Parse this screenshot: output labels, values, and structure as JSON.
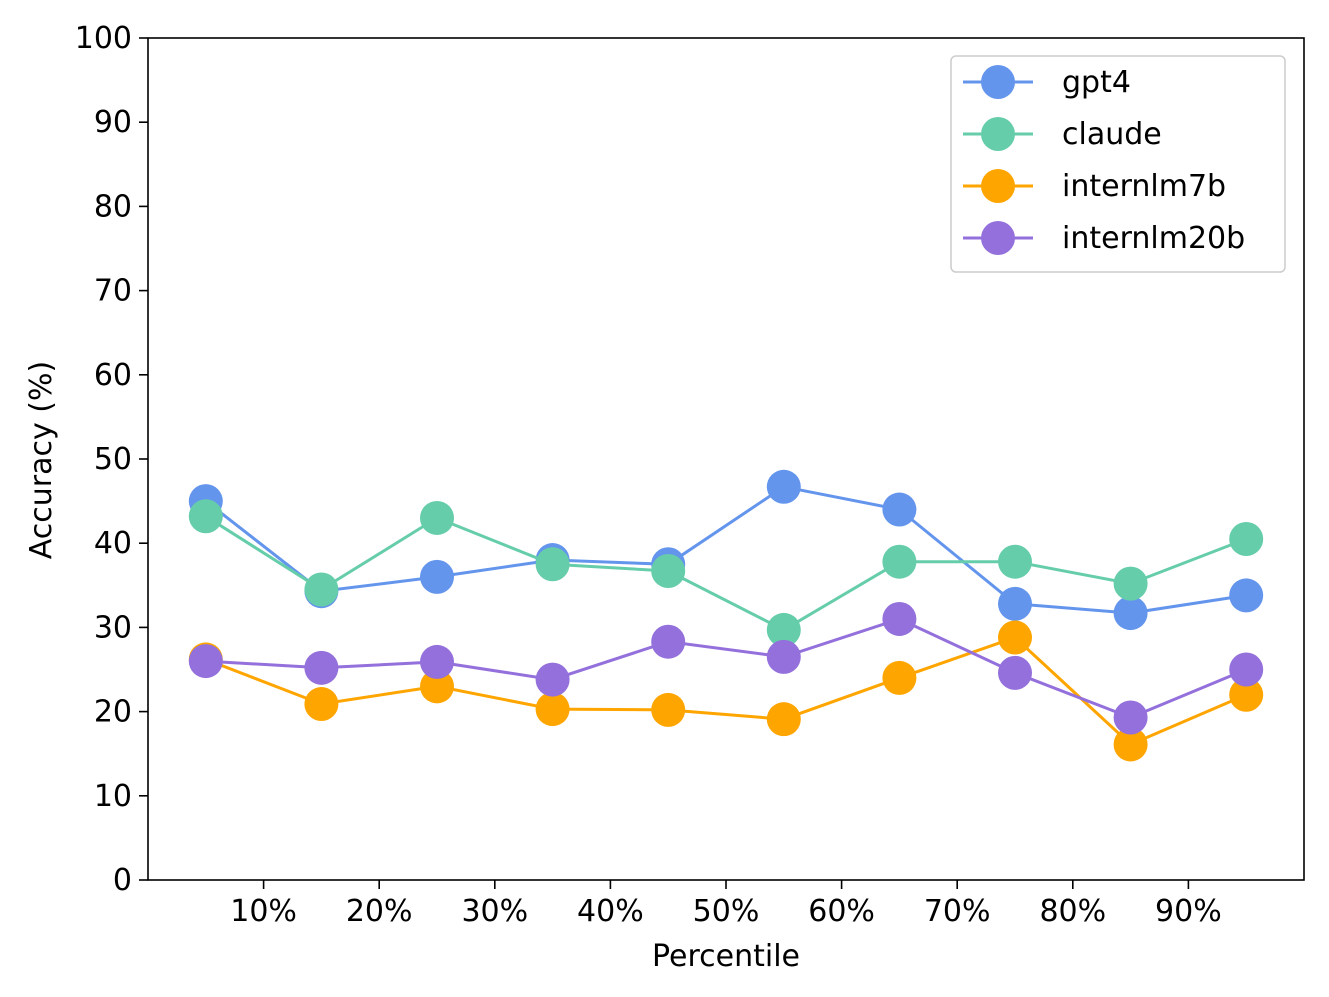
{
  "chart_data": {
    "type": "line",
    "title": "",
    "xlabel": "Percentile",
    "ylabel": "Accuracy (%)",
    "ylim": [
      0,
      100
    ],
    "xlim": [
      0,
      100
    ],
    "x": [
      5,
      15,
      25,
      35,
      45,
      55,
      65,
      75,
      85,
      95
    ],
    "xticks": [
      10,
      20,
      30,
      40,
      50,
      60,
      70,
      80,
      90
    ],
    "xtick_labels": [
      "10%",
      "20%",
      "30%",
      "40%",
      "50%",
      "60%",
      "70%",
      "80%",
      "90%"
    ],
    "yticks": [
      0,
      10,
      20,
      30,
      40,
      50,
      60,
      70,
      80,
      90,
      100
    ],
    "ytick_labels": [
      "0",
      "10",
      "20",
      "30",
      "40",
      "50",
      "60",
      "70",
      "80",
      "90",
      "100"
    ],
    "grid": false,
    "legend_position": "top-right",
    "series": [
      {
        "name": "gpt4",
        "color": "#6495ED",
        "values": [
          45.0,
          34.3,
          36.0,
          38.0,
          37.5,
          46.7,
          44.0,
          32.8,
          31.7,
          33.8
        ]
      },
      {
        "name": "claude",
        "color": "#66CDAA",
        "values": [
          43.2,
          34.5,
          43.0,
          37.5,
          36.7,
          29.7,
          37.8,
          37.8,
          35.2,
          40.5
        ]
      },
      {
        "name": "internlm7b",
        "color": "#FFA500",
        "values": [
          26.2,
          20.9,
          23.0,
          20.3,
          20.2,
          19.1,
          24.0,
          28.8,
          16.1,
          22.0
        ]
      },
      {
        "name": "internlm20b",
        "color": "#9370DB",
        "values": [
          26.0,
          25.2,
          25.9,
          23.8,
          28.3,
          26.5,
          31.0,
          24.6,
          19.3,
          25.0
        ]
      }
    ]
  }
}
